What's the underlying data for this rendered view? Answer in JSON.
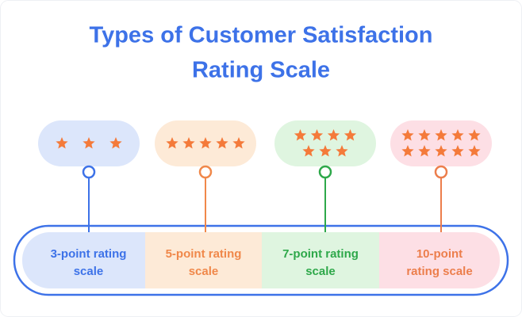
{
  "title_lines": [
    "Types of Customer Satisfaction",
    "Rating Scale"
  ],
  "scales": [
    {
      "stars": 3,
      "label_lines": [
        "3-point rating",
        "scale"
      ],
      "color": "#3d72e8",
      "fill": "#dce6fb"
    },
    {
      "stars": 5,
      "label_lines": [
        "5-point rating",
        "scale"
      ],
      "color": "#f0884a",
      "fill": "#fdead7"
    },
    {
      "stars": 7,
      "label_lines": [
        "7-point rating",
        "scale"
      ],
      "color": "#2ea84a",
      "fill": "#dff5e0"
    },
    {
      "stars": 10,
      "label_lines": [
        "10-point",
        "rating scale"
      ],
      "color": "#ec7e4c",
      "fill": "#fddfe5"
    }
  ],
  "star_color": "#f47a3a"
}
